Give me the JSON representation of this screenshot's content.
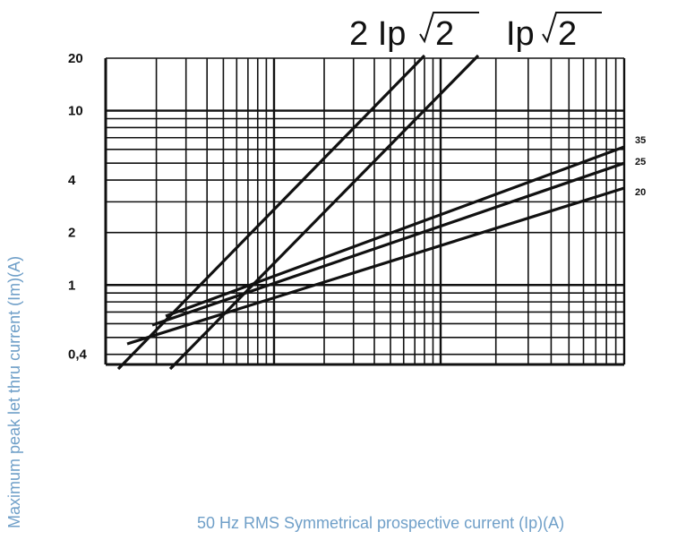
{
  "chart_data": {
    "type": "line",
    "title": "",
    "xlabel": "50 Hz RMS Symmetrical prospective current (Ip)(A)",
    "ylabel": "Maximum peak let thru current (Im)(A)",
    "y_scale": "log",
    "x_scale": "log",
    "ylim": [
      0.35,
      20
    ],
    "y_ticks": [
      "0,4",
      "1",
      "2",
      "4",
      "10",
      "20"
    ],
    "grid": true,
    "reference_lines": [
      {
        "label_prefix": "2 Ip",
        "label_radical": "2",
        "slope": "steep"
      },
      {
        "label_prefix": "Ip",
        "label_radical": "2",
        "slope": "steep"
      }
    ],
    "series": [
      {
        "name": "35",
        "endpoint_y": 6.2
      },
      {
        "name": "25",
        "endpoint_y": 5.0
      },
      {
        "name": "20",
        "endpoint_y": 3.6
      }
    ],
    "colors": {
      "line": "#111111",
      "axis_title": "#6f9fc8"
    }
  }
}
